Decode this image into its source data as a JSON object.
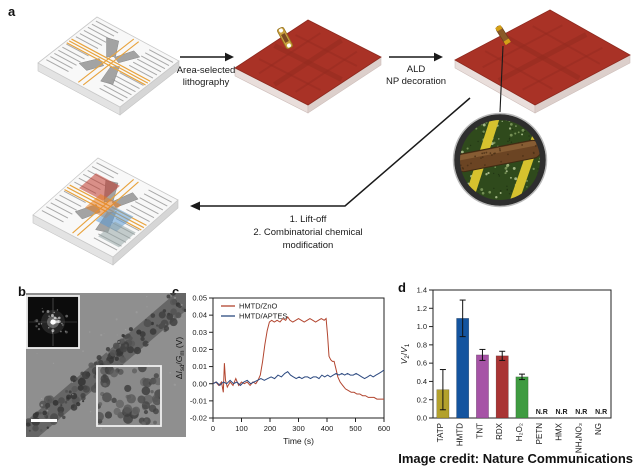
{
  "figure": {
    "panel_a": {
      "label": "a",
      "step1_lines": [
        "Area-selected",
        "lithography"
      ],
      "step2_lines": [
        "ALD",
        "NP decoration"
      ],
      "step3_lines": [
        "1. Lift-off",
        "2. Combinatorial chemical",
        "modification"
      ],
      "colors": {
        "substrate_red": "#a93226",
        "gold_wire": "#e8a33d",
        "electrode_gray": "#9a9a9a",
        "inset_green": "#2f4a1c",
        "inset_electrode_yellow": "#d6c22e",
        "nanowire_brown": "#6b4423",
        "modified_regions": [
          "#c0392b",
          "#e67e22",
          "#5b9bd5",
          "#95a5a6"
        ]
      }
    },
    "panel_b": {
      "label": "b"
    },
    "panel_c": {
      "label": "c"
    },
    "panel_d": {
      "label": "d"
    },
    "credit": "Image credit: Nature Communications"
  },
  "chart_data": [
    {
      "id": "panel-c",
      "type": "line",
      "xlabel": "Time (s)",
      "ylabel": "ΔIsd/Gm (V)",
      "ylabel_rich": [
        {
          "t": "Δ"
        },
        {
          "t": "I",
          "i": true
        },
        {
          "t": "sd",
          "sub": true
        },
        {
          "t": "/"
        },
        {
          "t": "G",
          "i": true
        },
        {
          "t": "m",
          "sub": true
        },
        {
          "t": " (V)"
        }
      ],
      "xlim": [
        0,
        600
      ],
      "ylim": [
        -0.02,
        0.05
      ],
      "xticks": [
        0,
        100,
        200,
        300,
        400,
        500,
        600
      ],
      "yticks": [
        -0.02,
        -0.01,
        0.0,
        0.01,
        0.02,
        0.03,
        0.04,
        0.05
      ],
      "ytick_decimals": 2,
      "grid": false,
      "legend_position": "top-left",
      "series": [
        {
          "name": "HMTD/ZnO",
          "color": "#b2452f",
          "points": [
            [
              0,
              0
            ],
            [
              10,
              0.001
            ],
            [
              20,
              -0.001
            ],
            [
              30,
              0.001
            ],
            [
              36,
              -0.005
            ],
            [
              40,
              0.012
            ],
            [
              44,
              0.002
            ],
            [
              50,
              -0.002
            ],
            [
              60,
              0.001
            ],
            [
              70,
              -0.001
            ],
            [
              80,
              0.003
            ],
            [
              90,
              -0.001
            ],
            [
              100,
              0.001
            ],
            [
              110,
              0
            ],
            [
              120,
              0.001
            ],
            [
              130,
              -0.001
            ],
            [
              140,
              0.001
            ],
            [
              150,
              0
            ],
            [
              158,
              0.002
            ],
            [
              166,
              0.005
            ],
            [
              174,
              0.013
            ],
            [
              182,
              0.023
            ],
            [
              190,
              0.031
            ],
            [
              198,
              0.036
            ],
            [
              206,
              0.037
            ],
            [
              215,
              0.036
            ],
            [
              225,
              0.037
            ],
            [
              235,
              0.036
            ],
            [
              245,
              0.038
            ],
            [
              255,
              0.037
            ],
            [
              262,
              0.039
            ],
            [
              270,
              0.037
            ],
            [
              280,
              0.036
            ],
            [
              290,
              0.037
            ],
            [
              300,
              0.038
            ],
            [
              310,
              0.037
            ],
            [
              320,
              0.036
            ],
            [
              330,
              0.037
            ],
            [
              340,
              0.038
            ],
            [
              350,
              0.037
            ],
            [
              360,
              0.036
            ],
            [
              370,
              0.037
            ],
            [
              380,
              0.038
            ],
            [
              390,
              0.037
            ],
            [
              397,
              0.038
            ],
            [
              402,
              0.028
            ],
            [
              407,
              0.016
            ],
            [
              413,
              0.014
            ],
            [
              419,
              0.013
            ],
            [
              425,
              0.013
            ],
            [
              431,
              0.009
            ],
            [
              438,
              0.004
            ],
            [
              446,
              0.001
            ],
            [
              455,
              -0.001
            ],
            [
              465,
              -0.003
            ],
            [
              475,
              -0.004
            ],
            [
              485,
              -0.005
            ],
            [
              495,
              -0.005
            ],
            [
              505,
              -0.006
            ],
            [
              515,
              -0.006
            ],
            [
              525,
              -0.007
            ],
            [
              535,
              -0.007
            ],
            [
              545,
              -0.008
            ],
            [
              555,
              -0.008
            ],
            [
              565,
              -0.008
            ],
            [
              575,
              -0.009
            ],
            [
              585,
              -0.009
            ],
            [
              600,
              -0.009
            ]
          ]
        },
        {
          "name": "HMTD/APTES",
          "color": "#2d4a80",
          "points": [
            [
              0,
              0
            ],
            [
              12,
              0.001
            ],
            [
              24,
              -0.001
            ],
            [
              36,
              0.001
            ],
            [
              48,
              0
            ],
            [
              60,
              0.002
            ],
            [
              72,
              0
            ],
            [
              84,
              0.001
            ],
            [
              96,
              -0.001
            ],
            [
              108,
              0.001
            ],
            [
              120,
              0.002
            ],
            [
              132,
              0
            ],
            [
              144,
              0.001
            ],
            [
              156,
              0.002
            ],
            [
              168,
              0.003
            ],
            [
              180,
              0.002
            ],
            [
              192,
              0.003
            ],
            [
              204,
              0.004
            ],
            [
              216,
              0.003
            ],
            [
              228,
              0.005
            ],
            [
              240,
              0.004
            ],
            [
              252,
              0.006
            ],
            [
              262,
              0.007
            ],
            [
              272,
              0.005
            ],
            [
              282,
              0.004
            ],
            [
              292,
              0.003
            ],
            [
              302,
              0.004
            ],
            [
              312,
              0.003
            ],
            [
              322,
              0.004
            ],
            [
              332,
              0.004
            ],
            [
              342,
              0.003
            ],
            [
              352,
              0.004
            ],
            [
              362,
              0.004
            ],
            [
              372,
              0.003
            ],
            [
              382,
              0.005
            ],
            [
              392,
              0.004
            ],
            [
              402,
              0.005
            ],
            [
              412,
              0.004
            ],
            [
              422,
              0.005
            ],
            [
              432,
              0.006
            ],
            [
              442,
              0.005
            ],
            [
              452,
              0.006
            ],
            [
              462,
              0.005
            ],
            [
              472,
              0.006
            ],
            [
              482,
              0.005
            ],
            [
              492,
              0.005
            ],
            [
              502,
              0.006
            ],
            [
              512,
              0.005
            ],
            [
              522,
              0.004
            ],
            [
              532,
              0.003
            ],
            [
              542,
              0.004
            ],
            [
              552,
              0.005
            ],
            [
              562,
              0.004
            ],
            [
              572,
              0.005
            ],
            [
              582,
              0.006
            ],
            [
              592,
              0.007
            ],
            [
              600,
              0.008
            ]
          ]
        }
      ]
    },
    {
      "id": "panel-d",
      "type": "bar",
      "ylabel": "V₂/V₁",
      "ylabel_rich": [
        {
          "t": "V",
          "i": true
        },
        {
          "t": "2",
          "sub": true
        },
        {
          "t": "/"
        },
        {
          "t": "V",
          "i": true
        },
        {
          "t": "1",
          "sub": true
        }
      ],
      "ylim": [
        0,
        1.4
      ],
      "yticks": [
        0.0,
        0.2,
        0.4,
        0.6,
        0.8,
        1.0,
        1.2,
        1.4
      ],
      "ytick_decimals": 1,
      "categories": [
        "TATP",
        "HMTD",
        "TNT",
        "RDX",
        "H₂O₂",
        "PETN",
        "HMX",
        "NH₄NO₃",
        "NG"
      ],
      "values": [
        0.31,
        1.09,
        0.69,
        0.68,
        0.45,
        0,
        0,
        0,
        0
      ],
      "errors": [
        0.22,
        0.2,
        0.06,
        0.05,
        0.03,
        null,
        null,
        null,
        null
      ],
      "colors": [
        "#b3a12c",
        "#14549f",
        "#a653a6",
        "#a93434",
        "#3f9b41",
        null,
        null,
        null,
        null
      ],
      "no_response": [
        false,
        false,
        false,
        false,
        false,
        true,
        true,
        true,
        true
      ],
      "no_response_label": "N.R"
    }
  ]
}
